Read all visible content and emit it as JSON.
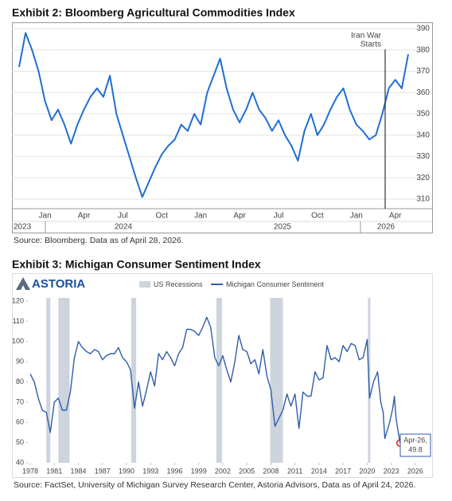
{
  "chart_data": [
    {
      "type": "line",
      "title": "Exhibit 2: Bloomberg Agricultural Commodities Index",
      "source": "Source: Bloomberg. Data as of April 28, 2026.",
      "annotation": [
        "Iran War",
        "Starts"
      ],
      "year_labels": [
        "2023",
        "2024",
        "2025",
        "2026"
      ],
      "color": "#1f6fd1",
      "categories": [
        null,
        null,
        null,
        null,
        "Jan",
        null,
        null,
        null,
        null,
        null,
        "Apr",
        null,
        null,
        null,
        null,
        null,
        "Jul",
        null,
        null,
        null,
        null,
        null,
        "Oct",
        null,
        null,
        null,
        null,
        null,
        "Jan",
        null,
        null,
        null,
        null,
        null,
        "Apr",
        null,
        null,
        null,
        null,
        null,
        "Jul",
        null,
        null,
        null,
        null,
        null,
        "Oct",
        null,
        null,
        null,
        null,
        null,
        "Jan",
        null,
        null,
        null,
        null,
        null,
        "Apr",
        null,
        null
      ],
      "values": [
        372,
        388,
        380,
        370,
        356,
        347,
        352,
        345,
        336,
        345,
        352,
        358,
        362,
        358,
        368,
        350,
        340,
        330,
        320,
        311,
        318,
        325,
        331,
        335,
        338,
        345,
        342,
        350,
        345,
        360,
        368,
        376,
        362,
        352,
        346,
        352,
        360,
        352,
        348,
        342,
        347,
        340,
        335,
        328,
        342,
        350,
        340,
        345,
        352,
        358,
        362,
        352,
        345,
        342,
        338,
        340,
        350,
        362,
        366,
        362,
        378
      ],
      "ylim": [
        305.5,
        393
      ],
      "yticks": [
        310,
        320,
        330,
        340,
        350,
        360,
        370,
        380,
        390
      ],
      "grid": true
    },
    {
      "type": "line",
      "title": "Exhibit 3: Michigan Consumer Sentiment Index",
      "logo": "ASTORIA",
      "source": "Source: FactSet, University of Michigan Survey Research Center, Astoria Advisors, Data as of April 24, 2026.",
      "annotation": "Apr-26,",
      "recessions": {
        "name": "US Recessions",
        "color": "#cdd4de",
        "periods": [
          [
            1980.0,
            1980.5
          ],
          [
            1981.5,
            1982.9
          ],
          [
            1990.6,
            1991.2
          ],
          [
            2001.2,
            2001.9
          ],
          [
            2007.9,
            2009.5
          ],
          [
            2020.1,
            2020.4
          ]
        ]
      },
      "x": [
        1978.0,
        1978.5,
        1979.0,
        1979.5,
        1980.0,
        1980.5,
        1981.0,
        1981.5,
        1982.0,
        1982.5,
        1983.0,
        1983.5,
        1984.0,
        1984.5,
        1985.0,
        1985.5,
        1986.0,
        1986.5,
        1987.0,
        1987.5,
        1988.0,
        1988.5,
        1989.0,
        1989.5,
        1990.0,
        1990.5,
        1991.0,
        1991.5,
        1992.0,
        1992.5,
        1993.0,
        1993.5,
        1994.0,
        1994.5,
        1995.0,
        1995.5,
        1996.0,
        1996.5,
        1997.0,
        1997.5,
        1998.0,
        1998.5,
        1999.0,
        1999.5,
        2000.0,
        2000.5,
        2001.0,
        2001.5,
        2002.0,
        2002.5,
        2003.0,
        2003.5,
        2004.0,
        2004.5,
        2005.0,
        2005.5,
        2006.0,
        2006.5,
        2007.0,
        2007.5,
        2008.0,
        2008.5,
        2009.0,
        2009.5,
        2010.0,
        2010.5,
        2011.0,
        2011.5,
        2012.0,
        2012.5,
        2013.0,
        2013.5,
        2014.0,
        2014.5,
        2015.0,
        2015.5,
        2016.0,
        2016.5,
        2017.0,
        2017.5,
        2018.0,
        2018.5,
        2019.0,
        2019.5,
        2020.0,
        2020.3,
        2020.8,
        2021.3,
        2021.7,
        2022.0,
        2022.2,
        2022.8,
        2023.2,
        2023.4,
        2023.6,
        2023.8,
        2024.1
      ],
      "series": [
        {
          "name": "Michigan Consumer Sentiment",
          "color": "#2f5da8",
          "values": [
            84,
            80,
            72,
            66,
            65,
            55,
            70,
            72,
            66,
            66,
            75,
            92,
            100,
            97,
            95,
            94,
            96,
            95,
            91,
            93,
            94,
            94,
            97,
            92,
            90,
            86,
            67,
            80,
            68,
            76,
            85,
            78,
            94,
            91,
            95,
            92,
            88,
            94,
            97,
            106,
            106,
            105,
            103,
            107,
            112,
            107,
            92,
            88,
            93,
            86,
            80,
            90,
            103,
            96,
            95,
            89,
            91,
            84,
            96,
            83,
            76,
            58,
            62,
            66,
            74,
            68,
            74,
            57,
            75,
            73,
            73,
            85,
            81,
            82,
            98,
            91,
            92,
            90,
            98,
            95,
            99,
            98,
            91,
            92,
            101,
            72,
            80,
            85,
            70,
            65,
            52,
            60,
            67,
            73,
            62,
            57,
            49.8
          ]
        }
      ],
      "xlim": [
        1977.7,
        2027.8
      ],
      "xticks": [
        1978,
        1981,
        1984,
        1987,
        1990,
        1993,
        1996,
        1999,
        2002,
        2005,
        2008,
        2011,
        2014,
        2017,
        2020,
        2023,
        2026
      ],
      "ylim": [
        40,
        120
      ],
      "yticks": [
        40,
        50,
        60,
        70,
        80,
        90,
        100,
        110,
        120
      ]
    }
  ]
}
